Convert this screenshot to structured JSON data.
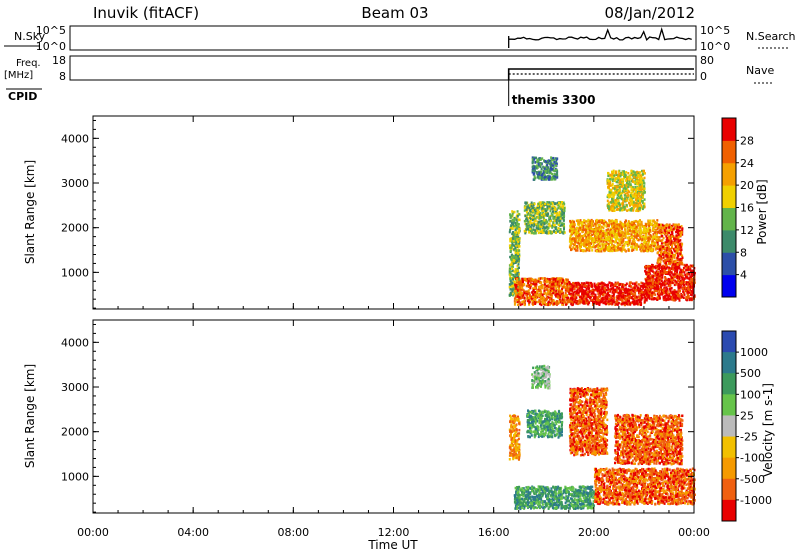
{
  "header": {
    "station": "Inuvik (fitACF)",
    "beam": "Beam 03",
    "date": "08/Jan/2012"
  },
  "top_panels": {
    "nsky_label": "N.Sky",
    "nsky_ticks": [
      "10^5",
      "10^0"
    ],
    "nsearch_label": "N.Search",
    "nsearch_ticks": [
      "10^5",
      "10^0"
    ],
    "freq_label": "Freq.",
    "freq_unit": "[MHz]",
    "freq_ticks": [
      "18",
      "8"
    ],
    "nave_label": "Nave",
    "nave_ticks": [
      "80",
      "0"
    ],
    "cpid_label": "CPID",
    "cpid_value": "themis 3300",
    "cpid_start_hour": 16.6
  },
  "colors": {
    "power_scale": [
      "#0000ee",
      "#2c4fa8",
      "#3c8a6a",
      "#62b44a",
      "#f0d000",
      "#f5a000",
      "#f06000",
      "#e80000"
    ],
    "velocity_scale": [
      "#2b4ab0",
      "#2c7a8c",
      "#3c9a5c",
      "#66c44a",
      "#bbbbbb",
      "#f2c000",
      "#f59a00",
      "#f06010",
      "#e80000"
    ]
  },
  "chart_data": [
    {
      "type": "heatmap",
      "name": "power",
      "title": "",
      "ylabel": "Slant Range [km]",
      "ylim": [
        180,
        4500
      ],
      "yticks": [
        "1000",
        "2000",
        "3000",
        "4000"
      ],
      "colorbar_label": "Power [dB]",
      "colorbar_ticks": [
        "4",
        "8",
        "12",
        "16",
        "20",
        "24",
        "28"
      ],
      "colorbar_range": [
        0,
        32
      ],
      "regions": [
        {
          "t": [
            16.6,
            17.0
          ],
          "r": [
            500,
            2400
          ],
          "level": 3
        },
        {
          "t": [
            16.8,
            19.0
          ],
          "r": [
            300,
            900
          ],
          "level": 6
        },
        {
          "t": [
            19.0,
            22.0
          ],
          "r": [
            300,
            800
          ],
          "level": 7
        },
        {
          "t": [
            22.0,
            24.0
          ],
          "r": [
            400,
            1200
          ],
          "level": 7
        },
        {
          "t": [
            17.2,
            18.8
          ],
          "r": [
            1900,
            2600
          ],
          "level": 3
        },
        {
          "t": [
            19.0,
            22.5
          ],
          "r": [
            1500,
            2200
          ],
          "level": 5
        },
        {
          "t": [
            22.5,
            23.5
          ],
          "r": [
            1200,
            2100
          ],
          "level": 6
        },
        {
          "t": [
            17.5,
            18.5
          ],
          "r": [
            3100,
            3600
          ],
          "level": 2
        },
        {
          "t": [
            20.5,
            22.0
          ],
          "r": [
            2400,
            3300
          ],
          "level": 4
        }
      ]
    },
    {
      "type": "heatmap",
      "name": "velocity",
      "title": "",
      "ylabel": "Slant Range [km]",
      "ylim": [
        180,
        4500
      ],
      "yticks": [
        "1000",
        "2000",
        "3000",
        "4000"
      ],
      "xlabel": "Time UT",
      "xticks": [
        "00:00",
        "04:00",
        "08:00",
        "12:00",
        "16:00",
        "20:00",
        "00:00"
      ],
      "xlim": [
        0,
        24
      ],
      "colorbar_label": "Velocity [m s-1]",
      "colorbar_ticks": [
        "1000",
        "500",
        "100",
        "25",
        "-25",
        "-100",
        "-500",
        "-1000"
      ],
      "regions": [
        {
          "t": [
            16.6,
            17.0
          ],
          "r": [
            1400,
            2400
          ],
          "level": 6
        },
        {
          "t": [
            16.8,
            20.0
          ],
          "r": [
            300,
            800
          ],
          "level": 2
        },
        {
          "t": [
            20.0,
            24.0
          ],
          "r": [
            400,
            1200
          ],
          "level": 7
        },
        {
          "t": [
            17.3,
            18.7
          ],
          "r": [
            1900,
            2500
          ],
          "level": 2
        },
        {
          "t": [
            19.0,
            20.5
          ],
          "r": [
            1500,
            3000
          ],
          "level": 7
        },
        {
          "t": [
            20.8,
            23.5
          ],
          "r": [
            1300,
            2400
          ],
          "level": 7
        },
        {
          "t": [
            17.5,
            18.2
          ],
          "r": [
            3000,
            3500
          ],
          "level": 3
        }
      ]
    }
  ]
}
